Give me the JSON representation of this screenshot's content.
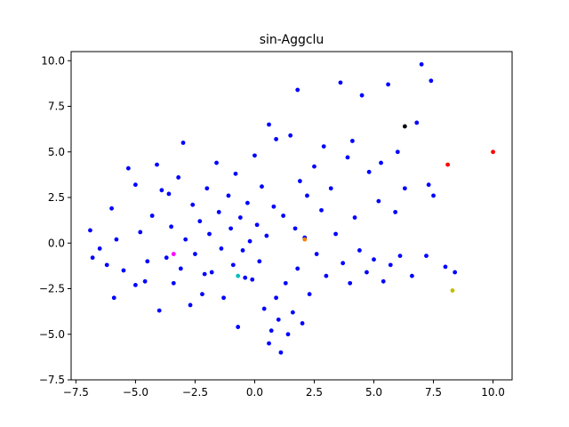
{
  "chart_data": {
    "type": "scatter",
    "title": "sin-Aggclu",
    "xlabel": "",
    "ylabel": "",
    "xlim": [
      -7.7,
      10.8
    ],
    "ylim": [
      -7.5,
      10.5
    ],
    "x_ticks": [
      -7.5,
      -5.0,
      -2.5,
      0.0,
      2.5,
      5.0,
      7.5,
      10.0
    ],
    "x_tick_labels": [
      "−7.5",
      "−5.0",
      "−2.5",
      "0.0",
      "2.5",
      "5.0",
      "7.5",
      "10.0"
    ],
    "y_ticks": [
      -7.5,
      -5.0,
      -2.5,
      0.0,
      2.5,
      5.0,
      7.5,
      10.0
    ],
    "y_tick_labels": [
      "−7.5",
      "−5.0",
      "−2.5",
      "0.0",
      "2.5",
      "5.0",
      "7.5",
      "10.0"
    ],
    "grid": false,
    "legend": "none",
    "colors": {
      "main": "#0000ff",
      "red": "#ff0000",
      "black": "#000000",
      "yellow": "#bfbf00",
      "magenta": "#ff00ff",
      "orange": "#ff8000",
      "cyan": "#00bfbf"
    },
    "series": [
      {
        "color": "#0000ff",
        "points": [
          [
            -6.9,
            0.7
          ],
          [
            -6.8,
            -0.8
          ],
          [
            -6.5,
            -0.3
          ],
          [
            -6.2,
            -1.2
          ],
          [
            -6.0,
            1.9
          ],
          [
            -5.9,
            -3.0
          ],
          [
            -5.8,
            0.2
          ],
          [
            -5.5,
            -1.5
          ],
          [
            -5.3,
            4.1
          ],
          [
            -5.0,
            3.2
          ],
          [
            -5.0,
            -2.3
          ],
          [
            -4.8,
            0.6
          ],
          [
            -4.5,
            -1.0
          ],
          [
            -4.3,
            1.5
          ],
          [
            -4.1,
            4.3
          ],
          [
            -4.0,
            -3.7
          ],
          [
            -3.9,
            2.9
          ],
          [
            -3.7,
            -0.8
          ],
          [
            -3.5,
            0.9
          ],
          [
            -3.4,
            -2.2
          ],
          [
            -3.2,
            3.6
          ],
          [
            -3.1,
            -1.4
          ],
          [
            -3.0,
            5.5
          ],
          [
            -2.9,
            0.2
          ],
          [
            -2.7,
            -3.4
          ],
          [
            -2.6,
            2.1
          ],
          [
            -2.5,
            -0.6
          ],
          [
            -2.3,
            1.2
          ],
          [
            -2.2,
            -2.8
          ],
          [
            -2.0,
            3.0
          ],
          [
            -1.9,
            0.5
          ],
          [
            -1.8,
            -1.6
          ],
          [
            -1.6,
            4.4
          ],
          [
            -1.5,
            1.7
          ],
          [
            -1.4,
            -0.3
          ],
          [
            -1.3,
            -3.0
          ],
          [
            -1.1,
            2.6
          ],
          [
            -1.0,
            0.8
          ],
          [
            -0.9,
            -1.2
          ],
          [
            -0.8,
            3.8
          ],
          [
            -0.7,
            -4.6
          ],
          [
            -0.6,
            1.4
          ],
          [
            -0.5,
            -0.4
          ],
          [
            -0.3,
            2.2
          ],
          [
            -0.2,
            0.1
          ],
          [
            -0.1,
            -2.0
          ],
          [
            0.0,
            4.8
          ],
          [
            0.1,
            1.0
          ],
          [
            0.2,
            -1.0
          ],
          [
            0.3,
            3.1
          ],
          [
            0.4,
            -3.6
          ],
          [
            0.5,
            0.4
          ],
          [
            0.6,
            6.5
          ],
          [
            0.6,
            -5.5
          ],
          [
            0.7,
            -4.8
          ],
          [
            0.8,
            2.0
          ],
          [
            0.9,
            -3.0
          ],
          [
            1.0,
            -4.2
          ],
          [
            1.1,
            -6.0
          ],
          [
            1.2,
            1.5
          ],
          [
            1.3,
            -2.2
          ],
          [
            1.4,
            -5.0
          ],
          [
            1.5,
            5.9
          ],
          [
            1.6,
            -3.8
          ],
          [
            1.7,
            0.8
          ],
          [
            1.8,
            -1.4
          ],
          [
            1.9,
            3.4
          ],
          [
            2.0,
            -4.4
          ],
          [
            2.1,
            0.3
          ],
          [
            2.2,
            2.6
          ],
          [
            2.3,
            -2.8
          ],
          [
            2.5,
            4.2
          ],
          [
            2.6,
            -0.6
          ],
          [
            2.8,
            1.8
          ],
          [
            3.0,
            -1.8
          ],
          [
            3.2,
            3.0
          ],
          [
            3.4,
            0.5
          ],
          [
            3.6,
            8.8
          ],
          [
            3.7,
            -1.1
          ],
          [
            3.9,
            4.7
          ],
          [
            4.0,
            -2.2
          ],
          [
            4.2,
            1.4
          ],
          [
            4.4,
            -0.4
          ],
          [
            4.5,
            8.1
          ],
          [
            4.7,
            -1.6
          ],
          [
            4.8,
            3.9
          ],
          [
            5.0,
            -0.9
          ],
          [
            5.2,
            2.3
          ],
          [
            5.4,
            -2.1
          ],
          [
            5.6,
            8.7
          ],
          [
            5.7,
            -1.2
          ],
          [
            5.9,
            1.7
          ],
          [
            6.1,
            -0.7
          ],
          [
            6.3,
            3.0
          ],
          [
            6.6,
            -1.8
          ],
          [
            6.8,
            6.6
          ],
          [
            7.0,
            9.8
          ],
          [
            7.2,
            -0.7
          ],
          [
            7.4,
            8.9
          ],
          [
            7.5,
            2.6
          ],
          [
            8.0,
            -1.3
          ],
          [
            8.4,
            -1.6
          ],
          [
            1.8,
            8.4
          ],
          [
            -3.6,
            2.7
          ],
          [
            -4.6,
            -2.1
          ],
          [
            -2.1,
            -1.7
          ],
          [
            -0.4,
            -1.9
          ],
          [
            0.9,
            5.7
          ],
          [
            2.9,
            5.3
          ],
          [
            4.1,
            5.6
          ],
          [
            5.3,
            4.4
          ],
          [
            6.0,
            5.0
          ],
          [
            7.3,
            3.2
          ]
        ]
      },
      {
        "color": "#ff0000",
        "points": [
          [
            8.1,
            4.3
          ],
          [
            10.0,
            5.0
          ]
        ]
      },
      {
        "color": "#000000",
        "points": [
          [
            6.3,
            6.4
          ]
        ]
      },
      {
        "color": "#bfbf00",
        "points": [
          [
            8.3,
            -2.6
          ]
        ]
      },
      {
        "color": "#ff00ff",
        "points": [
          [
            -3.4,
            -0.6
          ]
        ]
      },
      {
        "color": "#ff8000",
        "points": [
          [
            2.1,
            0.2
          ]
        ]
      },
      {
        "color": "#00bfbf",
        "points": [
          [
            -0.7,
            -1.8
          ]
        ]
      }
    ]
  }
}
